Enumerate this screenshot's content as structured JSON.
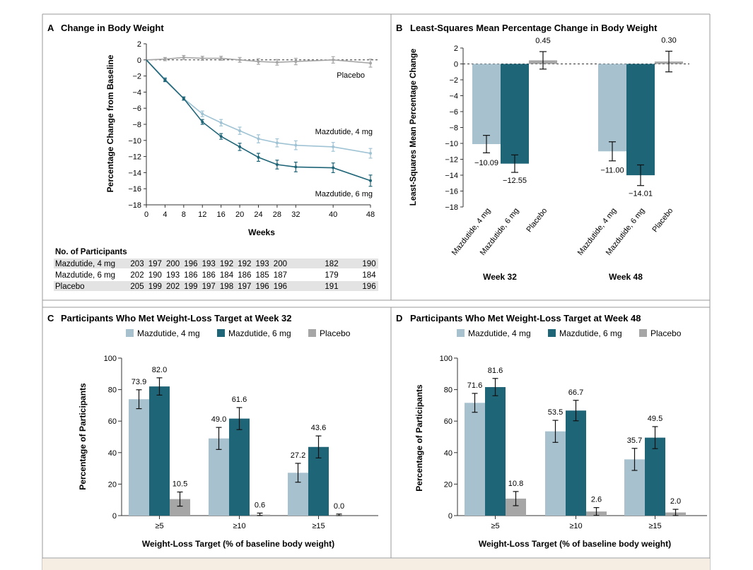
{
  "panels": {
    "A": {
      "letter": "A",
      "title": "Change in Body Weight"
    },
    "B": {
      "letter": "B",
      "title": "Least-Squares Mean Percentage Change in Body Weight"
    },
    "C": {
      "letter": "C",
      "title": "Participants Who Met Weight-Loss Target at Week 32"
    },
    "D": {
      "letter": "D",
      "title": "Participants Who Met Weight-Loss Target at Week 48"
    }
  },
  "participants_table": {
    "header": "No. of Participants",
    "rows": [
      {
        "label": "Mazdutide, 4 mg",
        "values": [
          "203",
          "197",
          "200",
          "196",
          "193",
          "192",
          "192",
          "193",
          "200",
          "182",
          "190"
        ]
      },
      {
        "label": "Mazdutide, 6 mg",
        "values": [
          "202",
          "190",
          "193",
          "186",
          "186",
          "184",
          "186",
          "185",
          "187",
          "179",
          "184"
        ]
      },
      {
        "label": "Placebo",
        "values": [
          "205",
          "199",
          "202",
          "199",
          "197",
          "198",
          "197",
          "196",
          "196",
          "191",
          "196"
        ]
      }
    ]
  },
  "colors": {
    "light": "#a7c1cf",
    "dark": "#1f6578",
    "grey": "#a6a6a6",
    "line_light": "#9fc3d4",
    "line_dark": "#1f6578",
    "line_grey": "#a6a6a6",
    "row_shade": "#e3e3e3"
  },
  "chart_data": [
    {
      "id": "A",
      "type": "line",
      "title": "Change in Body Weight",
      "xlabel": "Weeks",
      "ylabel": "Percentage Change from Baseline",
      "xlim": [
        0,
        48
      ],
      "ylim": [
        -18,
        2
      ],
      "xticks": [
        0,
        4,
        8,
        12,
        16,
        20,
        24,
        28,
        32,
        40,
        48
      ],
      "yticks": [
        2,
        0,
        -2,
        -4,
        -6,
        -8,
        -10,
        -12,
        -14,
        -16,
        -18
      ],
      "x": [
        0,
        4,
        8,
        12,
        16,
        20,
        24,
        28,
        32,
        40,
        48
      ],
      "series": [
        {
          "name": "Placebo",
          "values": [
            0,
            0.1,
            0.3,
            0.2,
            0.2,
            0,
            -0.2,
            -0.3,
            -0.2,
            0,
            -0.4
          ],
          "err": [
            0,
            0.2,
            0.25,
            0.25,
            0.25,
            0.3,
            0.35,
            0.35,
            0.4,
            0.4,
            0.5
          ]
        },
        {
          "name": "Mazdutide, 4 mg",
          "values": [
            0,
            -2.4,
            -4.8,
            -6.7,
            -7.8,
            -8.8,
            -9.8,
            -10.3,
            -10.6,
            -10.8,
            -11.6
          ],
          "err": [
            0,
            0.2,
            0.2,
            0.35,
            0.4,
            0.45,
            0.5,
            0.5,
            0.55,
            0.55,
            0.6
          ]
        },
        {
          "name": "Mazdutide, 6 mg",
          "values": [
            0,
            -2.5,
            -4.8,
            -7.7,
            -9.5,
            -10.8,
            -12.1,
            -13.0,
            -13.3,
            -13.4,
            -15.0
          ],
          "err": [
            0,
            0.2,
            0.2,
            0.3,
            0.35,
            0.45,
            0.5,
            0.55,
            0.6,
            0.6,
            0.7
          ]
        }
      ],
      "annotations": [
        "Placebo",
        "Mazdutide, 4 mg",
        "Mazdutide, 6 mg"
      ]
    },
    {
      "id": "B",
      "type": "bar",
      "title": "Least-Squares Mean Percentage Change in Body Weight",
      "ylabel": "Least-Squares Mean Percentage Change",
      "ylim": [
        -18,
        2
      ],
      "yticks": [
        2,
        0,
        -2,
        -4,
        -6,
        -8,
        -10,
        -12,
        -14,
        -16,
        -18
      ],
      "groups": [
        "Week 32",
        "Week 48"
      ],
      "categories": [
        "Mazdutide, 4 mg",
        "Mazdutide, 6 mg",
        "Placebo"
      ],
      "series": [
        {
          "group": "Week 32",
          "values": [
            -10.09,
            -12.55,
            0.45
          ],
          "labels": [
            "−10.09",
            "−12.55",
            "0.45"
          ],
          "err": [
            1.1,
            1.1,
            1.1
          ]
        },
        {
          "group": "Week 48",
          "values": [
            -11.0,
            -14.01,
            0.3
          ],
          "labels": [
            "−11.00",
            "−14.01",
            "0.30"
          ],
          "err": [
            1.2,
            1.3,
            1.3
          ]
        }
      ]
    },
    {
      "id": "C",
      "type": "bar",
      "title": "Participants Who Met Weight-Loss Target at Week 32",
      "xlabel": "Weight-Loss Target (% of baseline body weight)",
      "ylabel": "Percentage of Participants",
      "ylim": [
        0,
        100
      ],
      "yticks": [
        0,
        20,
        40,
        60,
        80,
        100
      ],
      "categories": [
        "≥5",
        "≥10",
        "≥15"
      ],
      "legend": [
        "Mazdutide, 4 mg",
        "Mazdutide, 6 mg",
        "Placebo"
      ],
      "series": [
        {
          "name": "Mazdutide, 4 mg",
          "values": [
            73.9,
            49.0,
            27.2
          ],
          "labels": [
            "73.9",
            "49.0",
            "27.2"
          ],
          "err": [
            6,
            7,
            6
          ]
        },
        {
          "name": "Mazdutide, 6 mg",
          "values": [
            82.0,
            61.6,
            43.6
          ],
          "labels": [
            "82.0",
            "61.6",
            "43.6"
          ],
          "err": [
            5.5,
            7,
            7
          ]
        },
        {
          "name": "Placebo",
          "values": [
            10.5,
            0.6,
            0.0
          ],
          "labels": [
            "10.5",
            "0.6",
            "0.0"
          ],
          "err": [
            4.5,
            1,
            1
          ]
        }
      ]
    },
    {
      "id": "D",
      "type": "bar",
      "title": "Participants Who Met Weight-Loss Target at Week 48",
      "xlabel": "Weight-Loss Target (% of baseline body weight)",
      "ylabel": "Percentage of Participants",
      "ylim": [
        0,
        100
      ],
      "yticks": [
        0,
        20,
        40,
        60,
        80,
        100
      ],
      "categories": [
        "≥5",
        "≥10",
        "≥15"
      ],
      "legend": [
        "Mazdutide, 4 mg",
        "Mazdutide, 6 mg",
        "Placebo"
      ],
      "series": [
        {
          "name": "Mazdutide, 4 mg",
          "values": [
            71.6,
            53.5,
            35.7
          ],
          "labels": [
            "71.6",
            "53.5",
            "35.7"
          ],
          "err": [
            6,
            7,
            7
          ]
        },
        {
          "name": "Mazdutide, 6 mg",
          "values": [
            81.6,
            66.7,
            49.5
          ],
          "labels": [
            "81.6",
            "66.7",
            "49.5"
          ],
          "err": [
            5.5,
            6.5,
            7
          ]
        },
        {
          "name": "Placebo",
          "values": [
            10.8,
            2.6,
            2.0
          ],
          "labels": [
            "10.8",
            "2.6",
            "2.0"
          ],
          "err": [
            4.5,
            2.5,
            2
          ]
        }
      ]
    }
  ]
}
